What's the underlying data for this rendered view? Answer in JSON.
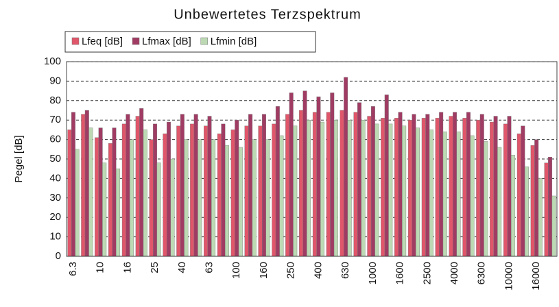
{
  "chart_data": {
    "type": "bar",
    "title": "Unbewertetes Terzspektrum",
    "y_label": "Pegel [dB]",
    "categories": [
      "6.3",
      null,
      "10",
      null,
      "16",
      null,
      "25",
      null,
      "40",
      null,
      "63",
      null,
      "100",
      null,
      "160",
      null,
      "250",
      null,
      "400",
      null,
      "630",
      null,
      "1000",
      null,
      "1600",
      null,
      "2500",
      null,
      "4000",
      null,
      "6300",
      null,
      "10000",
      null,
      "16000",
      null
    ],
    "series": [
      {
        "name": "Lfeq [dB]",
        "color": "#e0566a",
        "values": [
          65,
          73,
          61,
          58,
          68,
          72,
          60,
          63,
          67,
          68,
          67,
          63,
          65,
          67,
          67,
          68,
          73,
          75,
          74,
          74,
          75,
          74,
          72,
          71,
          71,
          70,
          71,
          71,
          72,
          71,
          70,
          69,
          68,
          63,
          57,
          48
        ]
      },
      {
        "name": "Lfmax [dB]",
        "color": "#a03c63",
        "values": [
          74,
          75,
          66,
          66,
          73,
          76,
          68,
          69,
          73,
          73,
          72,
          68,
          70,
          73,
          73,
          77,
          84,
          85,
          82,
          84,
          92,
          79,
          77,
          83,
          74,
          73,
          73,
          74,
          74,
          74,
          73,
          72,
          72,
          67,
          60,
          51
        ]
      },
      {
        "name": "Lfmin [dB]",
        "color": "#bcd9b4",
        "values": [
          55,
          66,
          48,
          45,
          60,
          65,
          48,
          50,
          60,
          60,
          60,
          57,
          56,
          60,
          60,
          62,
          67,
          70,
          69,
          70,
          70,
          70,
          68,
          68,
          67,
          66,
          65,
          64,
          64,
          62,
          59,
          56,
          52,
          46,
          40,
          31
        ]
      }
    ],
    "ylim": [
      0,
      100
    ],
    "yticks": [
      0,
      10,
      20,
      30,
      40,
      50,
      60,
      70,
      80,
      90,
      100
    ],
    "grid": true,
    "legend": "top"
  }
}
